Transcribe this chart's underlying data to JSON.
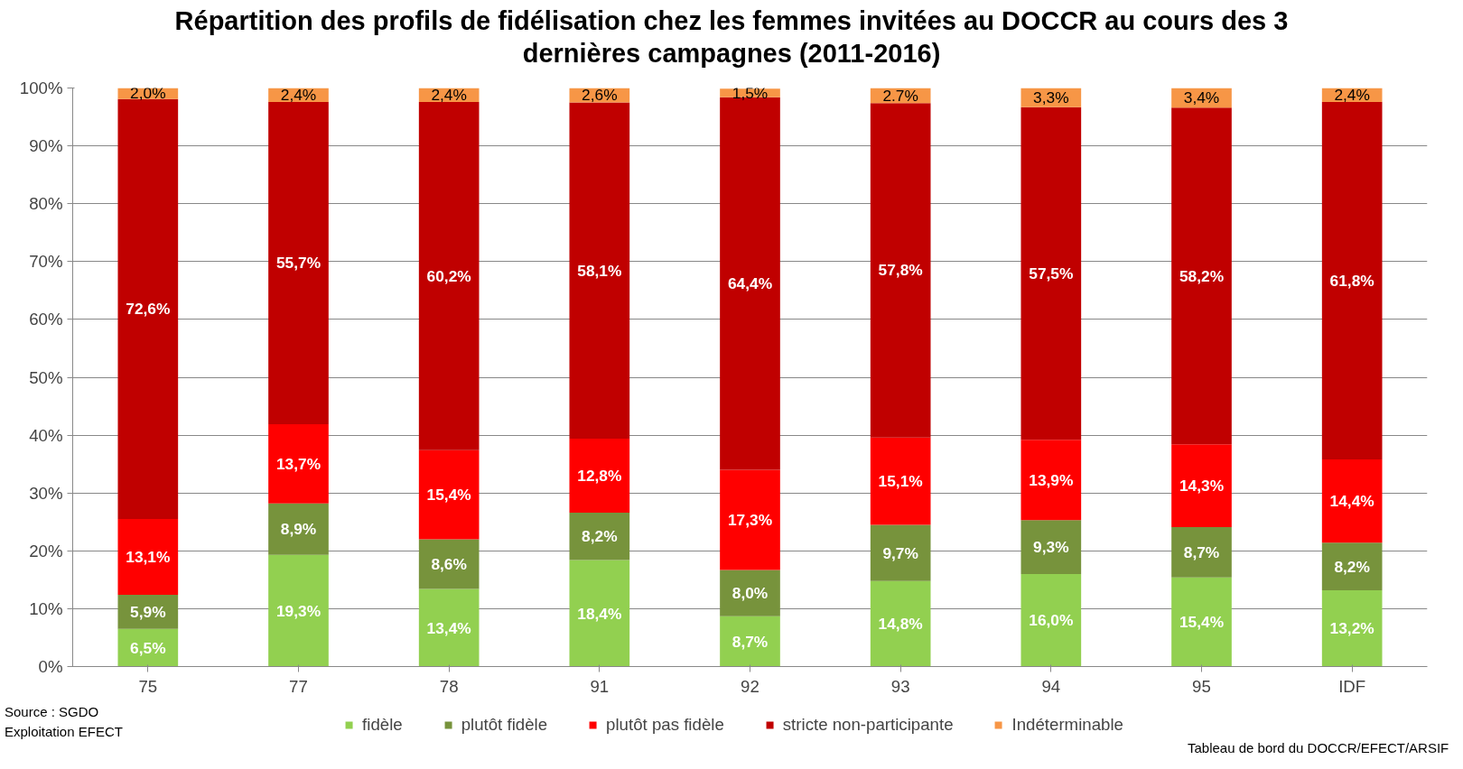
{
  "chart_data": {
    "type": "bar",
    "stacked": true,
    "title": "Répartition des profils de fidélisation chez les femmes invitées au DOCCR au cours des 3 dernières campagnes (2011-2016)",
    "categories": [
      "75",
      "77",
      "78",
      "91",
      "92",
      "93",
      "94",
      "95",
      "IDF"
    ],
    "series": [
      {
        "name": "fidèle",
        "color": "#92d050",
        "values": [
          6.5,
          19.3,
          13.4,
          18.4,
          8.7,
          14.8,
          16.0,
          15.4,
          13.2
        ],
        "value_labels": [
          "6,5%",
          "19,3%",
          "13,4%",
          "18,4%",
          "8,7%",
          "14,8%",
          "16,0%",
          "15,4%",
          "13,2%"
        ]
      },
      {
        "name": "plutôt fidèle",
        "color": "#77933c",
        "values": [
          5.9,
          8.9,
          8.6,
          8.2,
          8.0,
          9.7,
          9.3,
          8.7,
          8.2
        ],
        "value_labels": [
          "5,9%",
          "8,9%",
          "8,6%",
          "8,2%",
          "8,0%",
          "9,7%",
          "9,3%",
          "8,7%",
          "8,2%"
        ]
      },
      {
        "name": "plutôt pas fidèle",
        "color": "#ff0000",
        "values": [
          13.1,
          13.7,
          15.4,
          12.8,
          17.3,
          15.1,
          13.9,
          14.3,
          14.4
        ],
        "value_labels": [
          "13,1%",
          "13,7%",
          "15,4%",
          "12,8%",
          "17,3%",
          "15,1%",
          "13,9%",
          "14,3%",
          "14,4%"
        ]
      },
      {
        "name": "stricte non-participante",
        "color": "#c00000",
        "values": [
          72.6,
          55.7,
          60.2,
          58.1,
          64.4,
          57.8,
          57.5,
          58.2,
          61.8
        ],
        "value_labels": [
          "72,6%",
          "55,7%",
          "60,2%",
          "58,1%",
          "64,4%",
          "57,8%",
          "57,5%",
          "58,2%",
          "61,8%"
        ]
      },
      {
        "name": "Indéterminable",
        "color": "#f79646",
        "values": [
          2.0,
          2.4,
          2.4,
          2.6,
          1.5,
          2.7,
          3.3,
          3.4,
          2.4
        ],
        "value_labels": [
          "2,0%",
          "2,4%",
          "2,4%",
          "2,6%",
          "1,5%",
          "2.7%",
          "3,3%",
          "3,4%",
          "2,4%"
        ]
      }
    ],
    "ylim": [
      0,
      100
    ],
    "yticks": [
      {
        "value": 0,
        "label": "0%"
      },
      {
        "value": 10,
        "label": "10%"
      },
      {
        "value": 20,
        "label": "20%"
      },
      {
        "value": 30,
        "label": "30%"
      },
      {
        "value": 40,
        "label": "40%"
      },
      {
        "value": 50,
        "label": "50%"
      },
      {
        "value": 60,
        "label": "60%"
      },
      {
        "value": 70,
        "label": "70%"
      },
      {
        "value": 80,
        "label": "80%"
      },
      {
        "value": 90,
        "label": "90%"
      },
      {
        "value": 100,
        "label": "100%"
      }
    ],
    "grid": "y",
    "legend": "bottom",
    "annotations": [
      "Source : SGDO",
      "Exploitation EFECT",
      "Tableau de bord du DOCCR/EFECT/ARSIF"
    ]
  }
}
